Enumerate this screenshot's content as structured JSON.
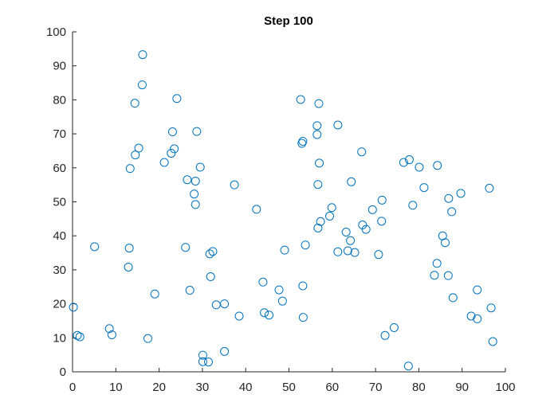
{
  "chart_data": {
    "type": "scatter",
    "title": "Step 100",
    "xlabel": "",
    "ylabel": "",
    "xlim": [
      0,
      100
    ],
    "ylim": [
      0,
      100
    ],
    "xticks": [
      0,
      10,
      20,
      30,
      40,
      50,
      60,
      70,
      80,
      90,
      100
    ],
    "yticks": [
      0,
      10,
      20,
      30,
      40,
      50,
      60,
      70,
      80,
      90,
      100
    ],
    "grid": false,
    "marker": "circle",
    "marker_color": "#0072BD",
    "series": [
      {
        "points": [
          [
            16.2,
            93.3
          ],
          [
            16.1,
            84.4
          ],
          [
            14.4,
            79.0
          ],
          [
            24.1,
            80.4
          ],
          [
            23.1,
            70.6
          ],
          [
            28.7,
            70.7
          ],
          [
            15.3,
            65.8
          ],
          [
            14.5,
            63.8
          ],
          [
            23.5,
            65.6
          ],
          [
            22.8,
            64.3
          ],
          [
            13.3,
            59.8
          ],
          [
            21.2,
            61.6
          ],
          [
            29.5,
            60.2
          ],
          [
            26.5,
            56.5
          ],
          [
            28.4,
            56.1
          ],
          [
            28.1,
            52.3
          ],
          [
            28.4,
            49.2
          ],
          [
            37.4,
            55.0
          ],
          [
            42.5,
            47.8
          ],
          [
            5.1,
            36.8
          ],
          [
            13.1,
            36.4
          ],
          [
            12.9,
            30.8
          ],
          [
            26.1,
            36.6
          ],
          [
            31.7,
            34.7
          ],
          [
            32.4,
            35.4
          ],
          [
            31.9,
            28.0
          ],
          [
            27.1,
            24.0
          ],
          [
            19.0,
            22.9
          ],
          [
            33.2,
            19.7
          ],
          [
            35.1,
            20.0
          ],
          [
            38.5,
            16.4
          ],
          [
            0.2,
            19.0
          ],
          [
            1.1,
            10.7
          ],
          [
            1.7,
            10.3
          ],
          [
            8.5,
            12.7
          ],
          [
            9.1,
            10.9
          ],
          [
            17.4,
            9.8
          ],
          [
            30.1,
            4.9
          ],
          [
            30.1,
            3.0
          ],
          [
            31.4,
            2.9
          ],
          [
            35.1,
            6.0
          ],
          [
            52.7,
            80.1
          ],
          [
            56.9,
            78.9
          ],
          [
            56.5,
            72.4
          ],
          [
            61.3,
            72.6
          ],
          [
            56.5,
            69.8
          ],
          [
            53.0,
            67.2
          ],
          [
            53.2,
            67.8
          ],
          [
            66.8,
            64.7
          ],
          [
            57.0,
            61.4
          ],
          [
            56.7,
            55.1
          ],
          [
            64.4,
            55.9
          ],
          [
            59.9,
            48.3
          ],
          [
            57.3,
            44.2
          ],
          [
            59.4,
            45.8
          ],
          [
            56.7,
            42.3
          ],
          [
            63.2,
            41.1
          ],
          [
            64.2,
            38.6
          ],
          [
            67.0,
            43.2
          ],
          [
            67.8,
            41.9
          ],
          [
            69.3,
            47.7
          ],
          [
            71.5,
            50.5
          ],
          [
            71.4,
            44.3
          ],
          [
            53.8,
            37.3
          ],
          [
            49.0,
            35.8
          ],
          [
            61.3,
            35.3
          ],
          [
            63.6,
            35.6
          ],
          [
            65.2,
            35.1
          ],
          [
            70.7,
            34.5
          ],
          [
            44.0,
            26.4
          ],
          [
            47.7,
            24.1
          ],
          [
            48.5,
            20.8
          ],
          [
            53.2,
            25.3
          ],
          [
            44.3,
            17.4
          ],
          [
            45.4,
            16.7
          ],
          [
            53.3,
            16.0
          ],
          [
            76.5,
            61.6
          ],
          [
            77.8,
            62.4
          ],
          [
            80.1,
            60.2
          ],
          [
            81.2,
            54.2
          ],
          [
            84.3,
            60.7
          ],
          [
            78.6,
            49.0
          ],
          [
            86.9,
            51.0
          ],
          [
            87.6,
            47.1
          ],
          [
            89.7,
            52.5
          ],
          [
            96.3,
            54.0
          ],
          [
            85.5,
            40.0
          ],
          [
            86.1,
            38.0
          ],
          [
            84.2,
            31.9
          ],
          [
            83.6,
            28.4
          ],
          [
            86.8,
            28.3
          ],
          [
            87.9,
            21.8
          ],
          [
            93.5,
            24.1
          ],
          [
            96.7,
            18.8
          ],
          [
            92.1,
            16.4
          ],
          [
            93.5,
            15.6
          ],
          [
            97.1,
            8.9
          ],
          [
            74.3,
            13.0
          ],
          [
            72.2,
            10.7
          ],
          [
            77.6,
            1.7
          ]
        ]
      }
    ]
  }
}
